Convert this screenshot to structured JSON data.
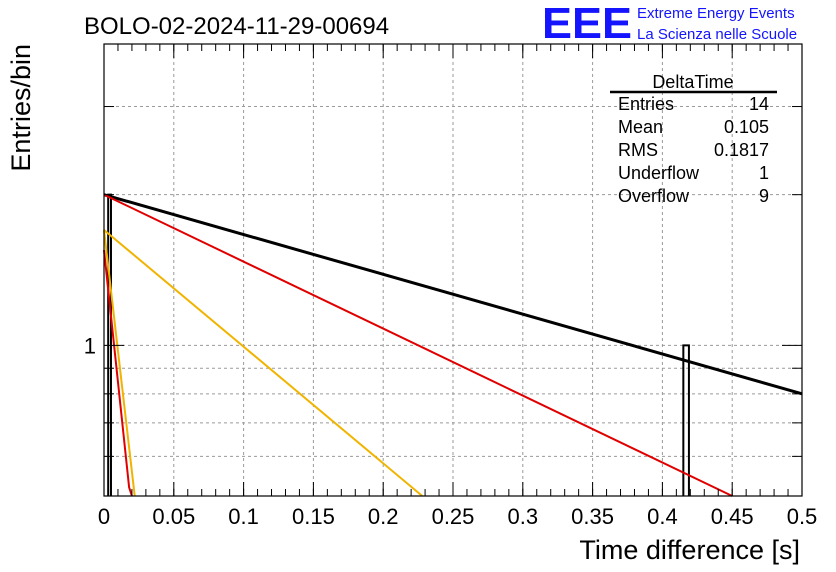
{
  "brand": {
    "logo": "EEE",
    "line1": "Extreme Energy Events",
    "line2": "La Scienza nelle Scuole"
  },
  "chart_data": {
    "type": "bar",
    "title": "BOLO-02-2024-11-29-00694",
    "xlabel": "Time difference [s]",
    "ylabel": "Entries/bin",
    "xlim": [
      0,
      0.5
    ],
    "ylim": [
      0.5,
      4.0
    ],
    "yscale": "log",
    "grid": true,
    "x_ticks": [
      "0",
      "0.05",
      "0.1",
      "0.15",
      "0.2",
      "0.25",
      "0.3",
      "0.35",
      "0.4",
      "0.45",
      "0.5"
    ],
    "y_ticks": [
      "1"
    ],
    "histogram": [
      {
        "x_low": 0.003,
        "x_high": 0.005,
        "value": 2.0
      },
      {
        "x_low": 0.415,
        "x_high": 0.419,
        "value": 1.0
      }
    ],
    "series": [
      {
        "x": [
          0.0,
          0.5
        ],
        "y": [
          2.0,
          0.8
        ],
        "color": "#000000"
      },
      {
        "x": [
          0.0,
          0.45
        ],
        "y": [
          2.0,
          0.5
        ],
        "color": "#e00000"
      },
      {
        "x": [
          0.0,
          0.018,
          0.02
        ],
        "y": [
          1.55,
          0.52,
          0.5
        ],
        "color": "#e00000"
      },
      {
        "x": [
          0.0,
          0.228
        ],
        "y": [
          1.7,
          0.5
        ],
        "color": "#f0b400"
      },
      {
        "x": [
          0.0,
          0.022
        ],
        "y": [
          1.7,
          0.5
        ],
        "color": "#f0b400"
      }
    ],
    "stats": {
      "title": "DeltaTime",
      "rows": [
        {
          "label": "Entries",
          "value": "14"
        },
        {
          "label": "Mean",
          "value": "0.105"
        },
        {
          "label": "RMS",
          "value": "0.1817"
        },
        {
          "label": "Underflow",
          "value": "1"
        },
        {
          "label": "Overflow",
          "value": "9"
        }
      ]
    }
  }
}
